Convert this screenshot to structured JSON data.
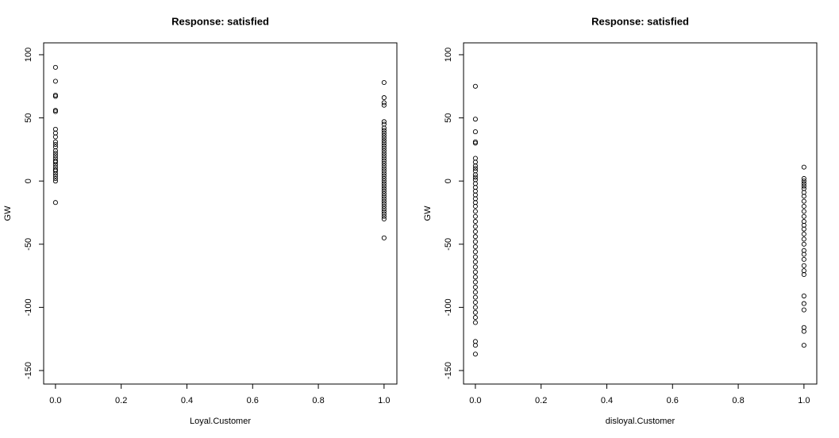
{
  "chart_data": [
    {
      "type": "scatter",
      "title": "Response: satisfied",
      "x_label": "Loyal.Customer",
      "y_label": "GW",
      "xlim": [
        -0.036,
        1.039
      ],
      "ylim": [
        -160.7,
        109.4
      ],
      "xticks": [
        {
          "value": 0,
          "label": "0.0"
        },
        {
          "value": 0.2,
          "label": "0.2"
        },
        {
          "value": 0.4,
          "label": "0.4"
        },
        {
          "value": 0.6,
          "label": "0.6"
        },
        {
          "value": 0.8,
          "label": "0.8"
        },
        {
          "value": 1,
          "label": "1.0"
        }
      ],
      "yticks": [
        -150,
        -100,
        -50,
        0,
        50,
        100
      ],
      "color": "#000000",
      "x": [
        0,
        0,
        0,
        0,
        0,
        0,
        0,
        0,
        0,
        0,
        0,
        0,
        0,
        0,
        0,
        0,
        0,
        0,
        0,
        0,
        0,
        0,
        0,
        0,
        0,
        0,
        0,
        1,
        1,
        1,
        1,
        1,
        1,
        1,
        1,
        1,
        1,
        1,
        1,
        1,
        1,
        1,
        1,
        1,
        1,
        1,
        1,
        1,
        1,
        1,
        1,
        1,
        1,
        1,
        1,
        1,
        1,
        1,
        1,
        1,
        1,
        1,
        1,
        1,
        1,
        1,
        1,
        1,
        1,
        1,
        1
      ],
      "y": [
        90,
        79,
        68,
        67,
        56,
        55,
        41,
        38,
        35,
        31,
        29,
        27,
        24,
        22,
        20,
        18,
        16,
        15,
        13,
        11,
        9,
        8,
        6,
        4,
        2,
        0,
        -17,
        78,
        66,
        62,
        60,
        47,
        45,
        42,
        40,
        38,
        36,
        34,
        32,
        30,
        28,
        26,
        24,
        22,
        20,
        18,
        16,
        14,
        12,
        10,
        8,
        6,
        4,
        2,
        0,
        -2,
        -4,
        -6,
        -8,
        -10,
        -12,
        -14,
        -16,
        -18,
        -20,
        -22,
        -24,
        -26,
        -28,
        -30,
        -45
      ]
    },
    {
      "type": "scatter",
      "title": "Response: satisfied",
      "x_label": "disloyal.Customer",
      "y_label": "GW",
      "xlim": [
        -0.036,
        1.039
      ],
      "ylim": [
        -160.7,
        109.4
      ],
      "xticks": [
        {
          "value": 0,
          "label": "0.0"
        },
        {
          "value": 0.2,
          "label": "0.2"
        },
        {
          "value": 0.4,
          "label": "0.4"
        },
        {
          "value": 0.6,
          "label": "0.6"
        },
        {
          "value": 0.8,
          "label": "0.8"
        },
        {
          "value": 1,
          "label": "1.0"
        }
      ],
      "yticks": [
        -150,
        -100,
        -50,
        0,
        50,
        100
      ],
      "color": "#000000",
      "x": [
        0,
        0,
        0,
        0,
        0,
        0,
        0,
        0,
        0,
        0,
        0,
        0,
        0,
        0,
        0,
        0,
        0,
        0,
        0,
        0,
        0,
        0,
        0,
        0,
        0,
        0,
        0,
        0,
        0,
        0,
        0,
        0,
        0,
        0,
        0,
        0,
        0,
        0,
        0,
        0,
        0,
        0,
        0,
        0,
        0,
        0,
        1,
        1,
        1,
        1,
        1,
        1,
        1,
        1,
        1,
        1,
        1,
        1,
        1,
        1,
        1,
        1,
        1,
        1,
        1,
        1,
        1,
        1,
        1,
        1,
        1,
        1,
        1,
        1,
        1,
        1
      ],
      "y": [
        75,
        49,
        39,
        31,
        30,
        18,
        15,
        12,
        10,
        8,
        5,
        3,
        1,
        -2,
        -5,
        -8,
        -11,
        -14,
        -17,
        -20,
        -24,
        -28,
        -32,
        -36,
        -40,
        -44,
        -48,
        -52,
        -56,
        -60,
        -64,
        -68,
        -72,
        -76,
        -80,
        -84,
        -88,
        -92,
        -96,
        -100,
        -104,
        -108,
        -112,
        -127,
        -130,
        -137,
        11,
        2,
        0,
        -2,
        -4,
        -6,
        -9,
        -12,
        -16,
        -20,
        -24,
        -28,
        -32,
        -35,
        -38,
        -42,
        -46,
        -50,
        -55,
        -58,
        -62,
        -67,
        -71,
        -74,
        -91,
        -97,
        -102,
        -116,
        -119,
        -130
      ]
    }
  ]
}
